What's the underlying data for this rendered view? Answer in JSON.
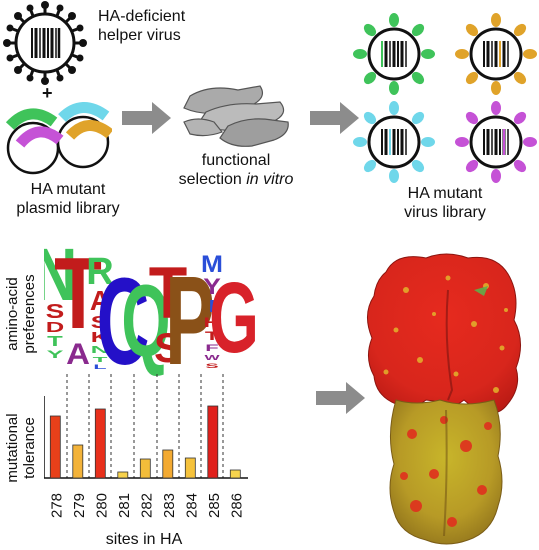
{
  "top": {
    "helper_virus_label": "HA-deficient\nhelper virus",
    "plus_sign": "+",
    "plasmid_library_label": "HA mutant\nplasmid library",
    "selection_label_line1": "functional",
    "selection_label_line2_prefix": "selection ",
    "selection_label_line2_italic": "in vitro",
    "virus_library_label": "HA mutant\nvirus library"
  },
  "bottom": {
    "ylabel_preferences": "amino-acid\npreferences",
    "ylabel_tolerance": "mutational\ntolerance",
    "xlabel": "sites in HA",
    "sites": [
      "278",
      "279",
      "280",
      "281",
      "282",
      "283",
      "284",
      "285",
      "286"
    ],
    "logo_letters": [
      [
        "N",
        "S",
        "D",
        "T",
        "Y"
      ],
      [
        "T",
        "A"
      ],
      [
        "R",
        "A",
        "S",
        "K",
        "N",
        "T",
        "L"
      ],
      [
        "C"
      ],
      [
        "Q"
      ],
      [
        "T",
        "S"
      ],
      [
        "P"
      ],
      [
        "M",
        "Y",
        "I",
        "H",
        "T",
        "F",
        "W",
        "S"
      ],
      [
        "G"
      ]
    ]
  },
  "chart_data": {
    "type": "bar",
    "categories": [
      "278",
      "279",
      "280",
      "281",
      "282",
      "283",
      "284",
      "285",
      "286"
    ],
    "values": [
      0.62,
      0.33,
      0.69,
      0.06,
      0.19,
      0.28,
      0.2,
      0.72,
      0.08
    ],
    "xlabel": "sites in HA",
    "ylabel": "mutational tolerance",
    "ylim": [
      0,
      0.8
    ],
    "bar_colors": [
      "#e8401a",
      "#f3b33a",
      "#e8301c",
      "#f7d24c",
      "#f3bd3a",
      "#f3aa32",
      "#f5c23c",
      "#e0201c",
      "#f7d54e"
    ]
  },
  "colors": {
    "green": "#3fc35a",
    "magenta": "#c552d6",
    "cyan": "#6fd7ea",
    "orange": "#e0a32a",
    "arrow": "#8c8c8c",
    "bar_border": "#333333"
  }
}
